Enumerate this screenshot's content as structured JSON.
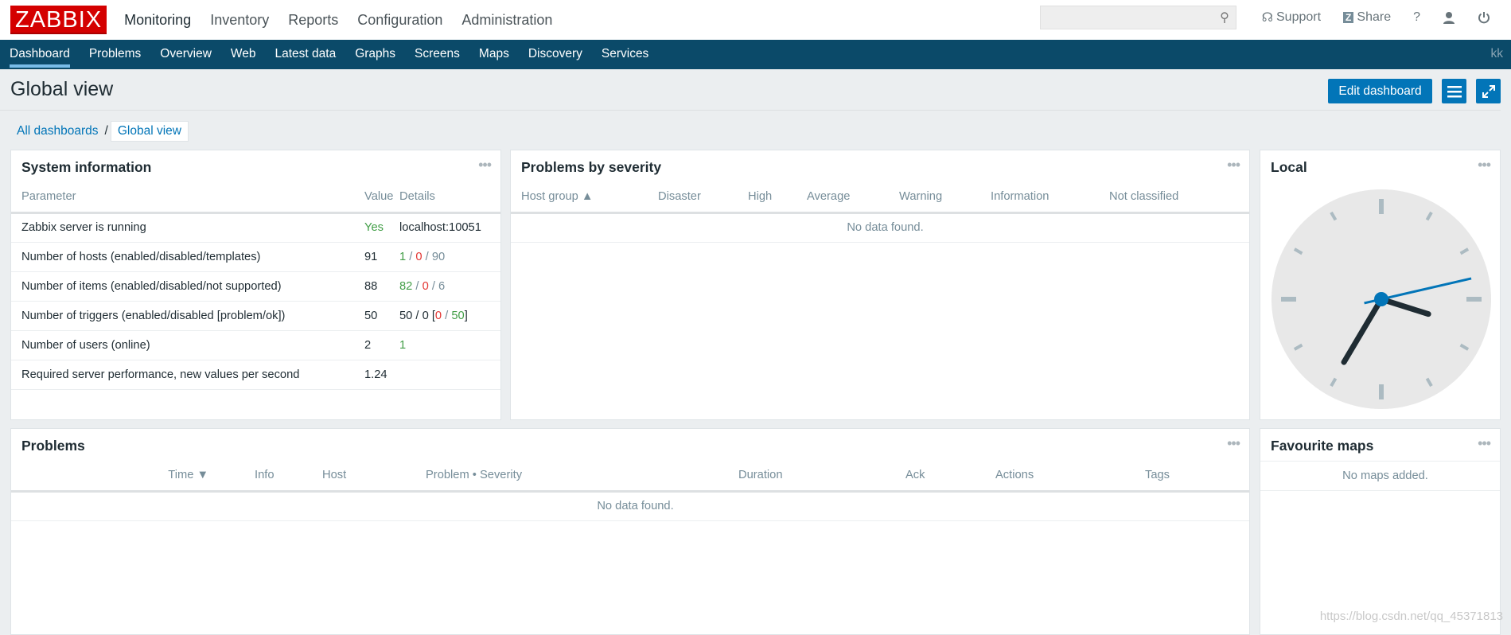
{
  "brand": {
    "logo": "ZABBIX",
    "color": "#d40000"
  },
  "main_menu": [
    "Monitoring",
    "Inventory",
    "Reports",
    "Configuration",
    "Administration"
  ],
  "top_right": {
    "search_value": "",
    "support": "Support",
    "share": "Share",
    "help": "?"
  },
  "sub_menu": [
    "Dashboard",
    "Problems",
    "Overview",
    "Web",
    "Latest data",
    "Graphs",
    "Screens",
    "Maps",
    "Discovery",
    "Services"
  ],
  "username": "kk",
  "page": {
    "title": "Global view",
    "edit_button": "Edit dashboard"
  },
  "breadcrumb": {
    "parent": "All dashboards",
    "separator": "/",
    "current": "Global view"
  },
  "system_info": {
    "title": "System information",
    "columns": [
      "Parameter",
      "Value",
      "Details"
    ],
    "rows": [
      {
        "param": "Zabbix server is running",
        "value": "Yes",
        "details": [
          {
            "t": "localhost:10051",
            "c": ""
          }
        ]
      },
      {
        "param": "Number of hosts (enabled/disabled/templates)",
        "value": "91",
        "details": [
          {
            "t": "1",
            "c": "g"
          },
          {
            "t": " / ",
            "c": "gr"
          },
          {
            "t": "0",
            "c": "r"
          },
          {
            "t": " / ",
            "c": "gr"
          },
          {
            "t": "90",
            "c": "gr"
          }
        ]
      },
      {
        "param": "Number of items (enabled/disabled/not supported)",
        "value": "88",
        "details": [
          {
            "t": "82",
            "c": "g"
          },
          {
            "t": " / ",
            "c": "gr"
          },
          {
            "t": "0",
            "c": "r"
          },
          {
            "t": " / ",
            "c": "gr"
          },
          {
            "t": "6",
            "c": "gr"
          }
        ]
      },
      {
        "param": "Number of triggers (enabled/disabled [problem/ok])",
        "value": "50",
        "details": [
          {
            "t": "50 / 0 [",
            "c": ""
          },
          {
            "t": "0",
            "c": "r"
          },
          {
            "t": " / ",
            "c": "gr"
          },
          {
            "t": "50",
            "c": "g"
          },
          {
            "t": "]",
            "c": ""
          }
        ]
      },
      {
        "param": "Number of users (online)",
        "value": "2",
        "details": [
          {
            "t": "1",
            "c": "g"
          }
        ]
      },
      {
        "param": "Required server performance, new values per second",
        "value": "1.24",
        "details": []
      }
    ]
  },
  "problems_by_severity": {
    "title": "Problems by severity",
    "columns": [
      "Host group ▲",
      "Disaster",
      "High",
      "Average",
      "Warning",
      "Information",
      "Not classified"
    ],
    "empty": "No data found."
  },
  "clock": {
    "title": "Local",
    "time": "15:35:07"
  },
  "problems": {
    "title": "Problems",
    "columns": [
      "Time ▼",
      "Info",
      "Host",
      "Problem • Severity",
      "Duration",
      "Ack",
      "Actions",
      "Tags"
    ],
    "empty": "No data found."
  },
  "fav_maps": {
    "title": "Favourite maps",
    "empty": "No maps added."
  },
  "watermark": "https://blog.csdn.net/qq_45371813"
}
